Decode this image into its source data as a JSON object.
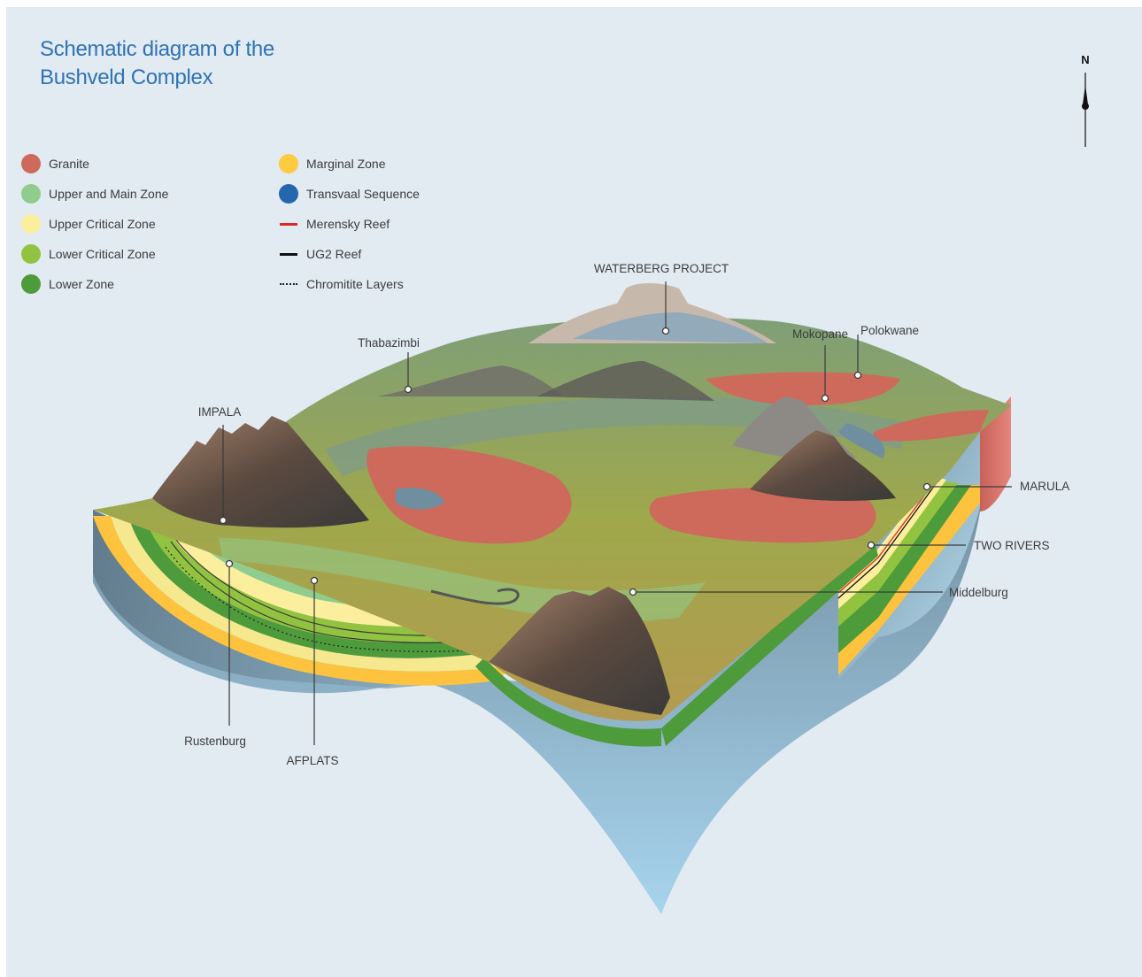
{
  "title": {
    "line1": "Schematic diagram of the",
    "line2": "Bushveld Complex"
  },
  "legend": {
    "zones": [
      {
        "label": "Granite",
        "color": "#cd6a5c"
      },
      {
        "label": "Upper and Main Zone",
        "color": "#8fcc8d"
      },
      {
        "label": "Upper Critical Zone",
        "color": "#fbee9c"
      },
      {
        "label": "Lower Critical Zone",
        "color": "#92c340"
      },
      {
        "label": "Lower Zone",
        "color": "#4e9b3c"
      }
    ],
    "rocks": [
      {
        "label": "Marginal Zone",
        "color": "#fdcb3f"
      },
      {
        "label": "Transvaal Sequence",
        "color": "#2567ae"
      }
    ],
    "lines": [
      {
        "label": "Merensky Reef",
        "color": "#e0262c",
        "style": "solid"
      },
      {
        "label": "UG2 Reef",
        "color": "#111111",
        "style": "solid"
      },
      {
        "label": "Chromitite Layers",
        "color": "#222222",
        "style": "dotted"
      }
    ]
  },
  "callouts": {
    "waterberg": "WATERBERG PROJECT",
    "thabazimbi": "Thabazimbi",
    "mokopane": "Mokopane",
    "polokwane": "Polokwane",
    "impala": "IMPALA",
    "marula": "MARULA",
    "two_rivers": "TWO RIVERS",
    "middelburg": "Middelburg",
    "rustenburg": "Rustenburg",
    "afplats": "AFPLATS"
  },
  "compass": {
    "label": "N"
  }
}
